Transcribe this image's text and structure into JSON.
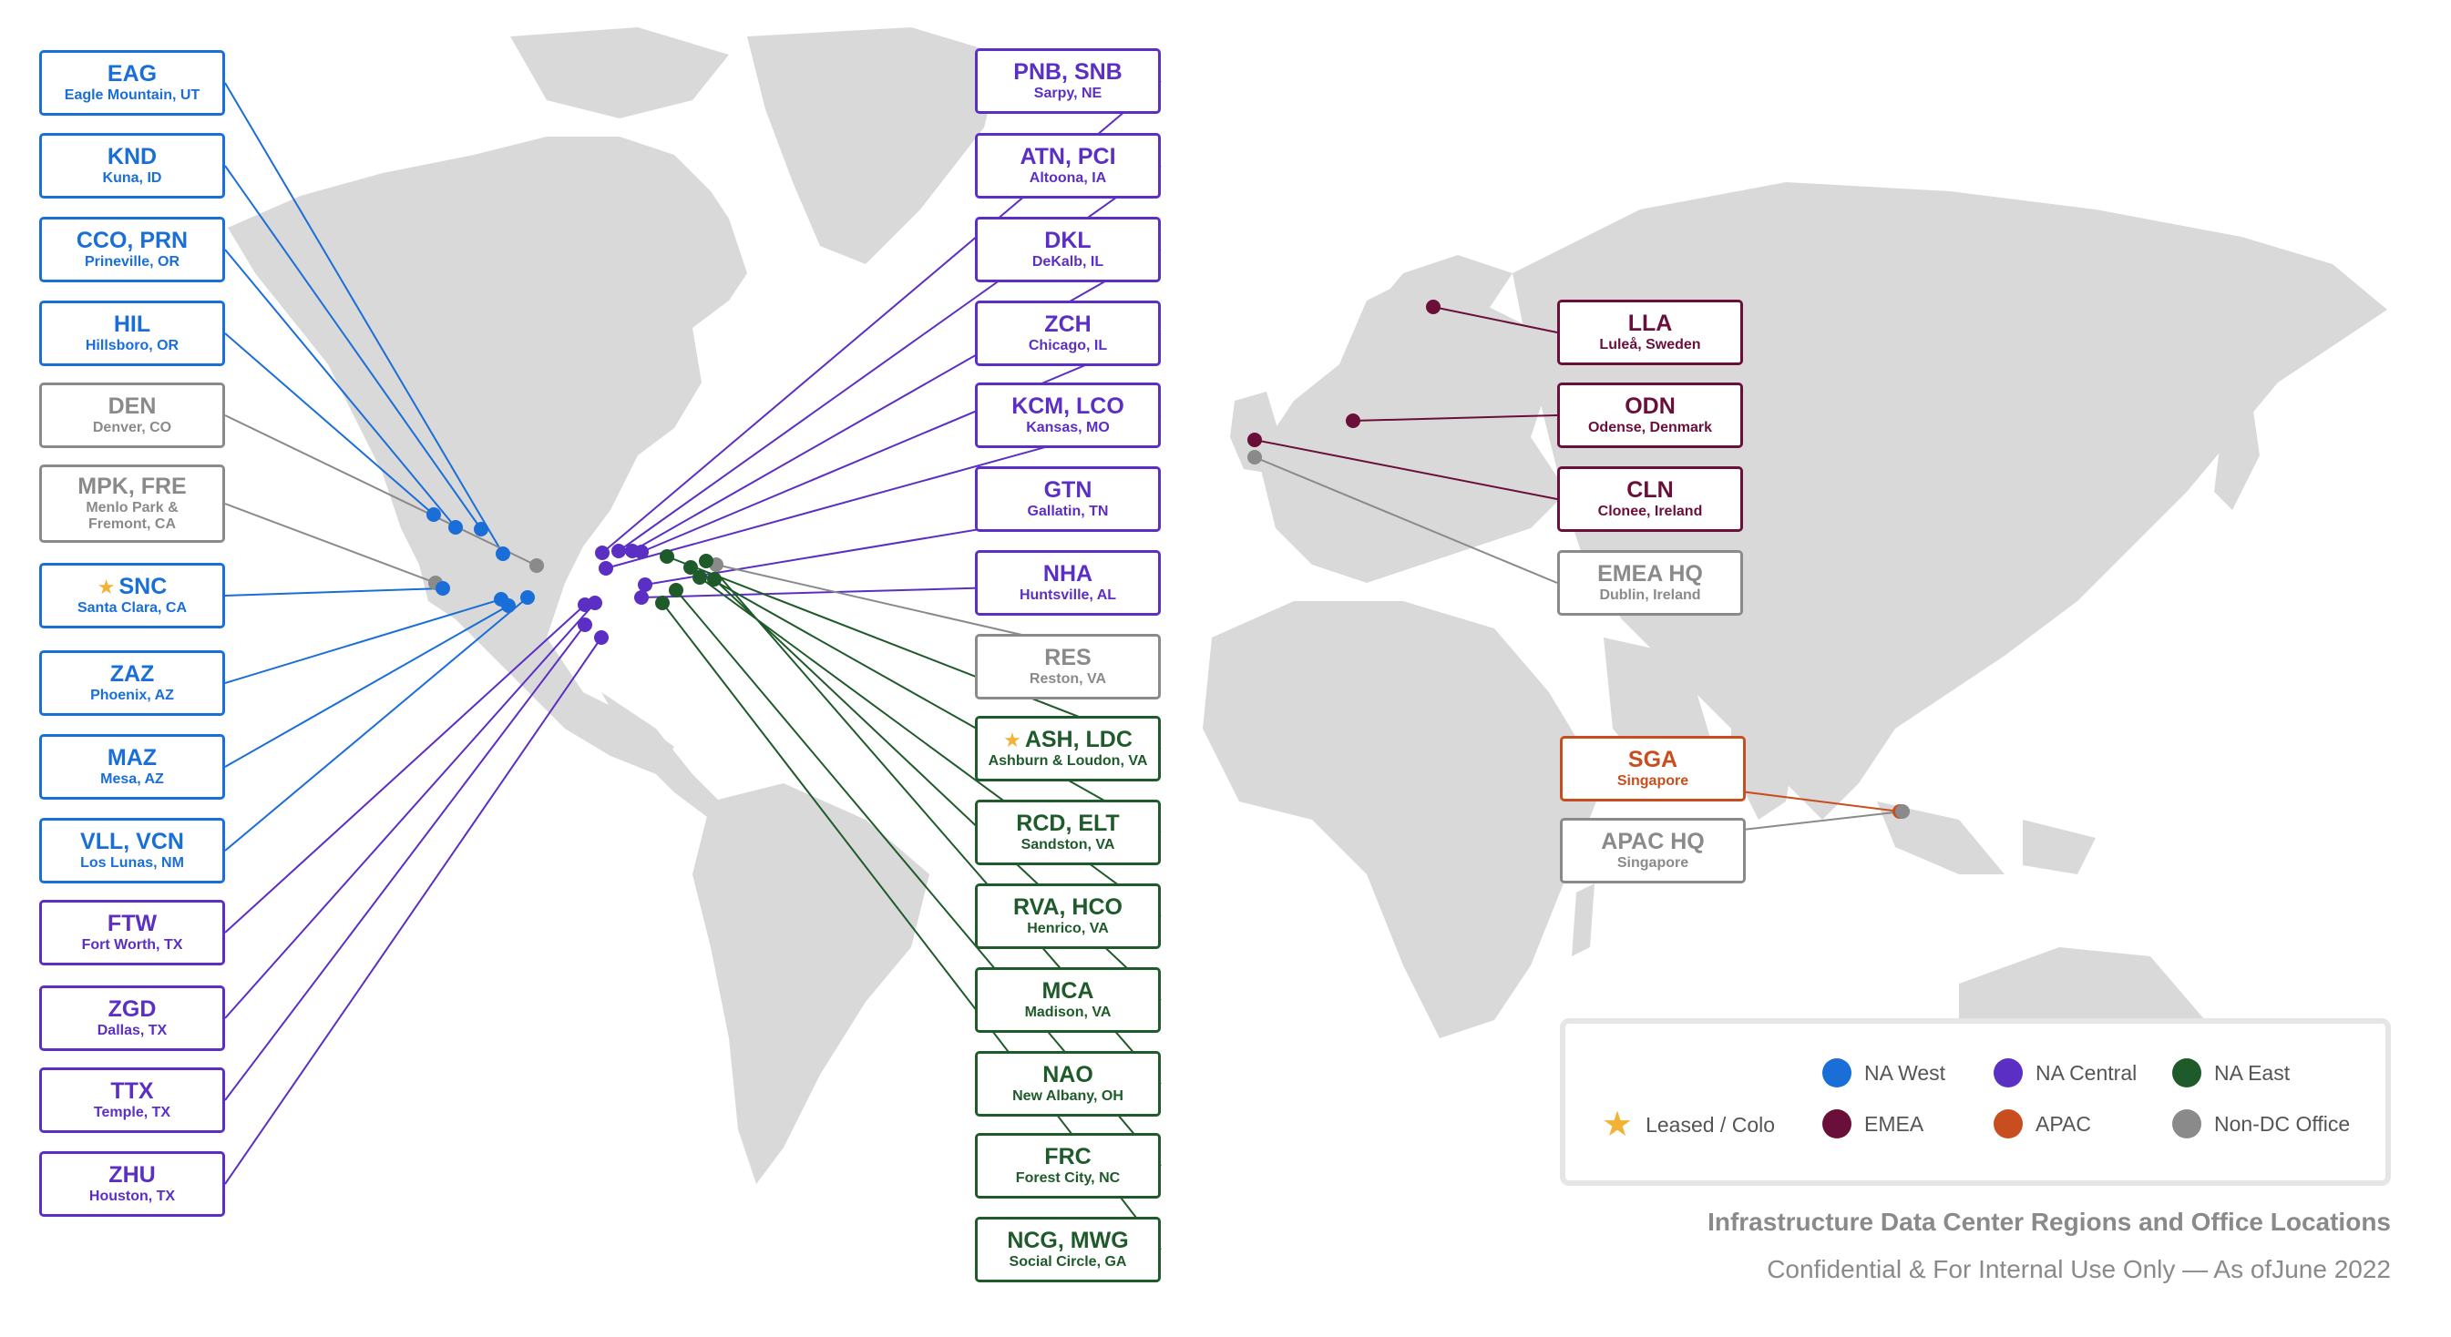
{
  "colors": {
    "na_west": "#1a6ed8",
    "na_central": "#5b2fc4",
    "na_east": "#1f5a2a",
    "emea": "#6a0f3a",
    "apac": "#c94e1f",
    "non_dc": "#8a8a8a",
    "leased": "#f2b233",
    "land": "#d9d9d9"
  },
  "sites": [
    {
      "code": "EAG",
      "location": "Eagle Mountain, UT",
      "region": "na_west"
    },
    {
      "code": "KND",
      "location": "Kuna, ID",
      "region": "na_west"
    },
    {
      "code": "CCO, PRN",
      "location": "Prineville, OR",
      "region": "na_west"
    },
    {
      "code": "HIL",
      "location": "Hillsboro, OR",
      "region": "na_west"
    },
    {
      "code": "DEN",
      "location": "Denver, CO",
      "region": "non_dc"
    },
    {
      "code": "MPK, FRE",
      "location": "Menlo Park & Fremont, CA",
      "region": "non_dc"
    },
    {
      "code": "SNC",
      "location": "Santa Clara, CA",
      "region": "na_west",
      "leased": true
    },
    {
      "code": "ZAZ",
      "location": "Phoenix, AZ",
      "region": "na_west"
    },
    {
      "code": "MAZ",
      "location": "Mesa, AZ",
      "region": "na_west"
    },
    {
      "code": "VLL, VCN",
      "location": "Los Lunas, NM",
      "region": "na_west"
    },
    {
      "code": "FTW",
      "location": "Fort Worth, TX",
      "region": "na_central"
    },
    {
      "code": "ZGD",
      "location": "Dallas, TX",
      "region": "na_central"
    },
    {
      "code": "TTX",
      "location": "Temple, TX",
      "region": "na_central"
    },
    {
      "code": "ZHU",
      "location": "Houston, TX",
      "region": "na_central"
    },
    {
      "code": "PNB, SNB",
      "location": "Sarpy, NE",
      "region": "na_central"
    },
    {
      "code": "ATN, PCI",
      "location": "Altoona, IA",
      "region": "na_central"
    },
    {
      "code": "DKL",
      "location": "DeKalb, IL",
      "region": "na_central"
    },
    {
      "code": "ZCH",
      "location": "Chicago, IL",
      "region": "na_central"
    },
    {
      "code": "KCM, LCO",
      "location": "Kansas, MO",
      "region": "na_central"
    },
    {
      "code": "GTN",
      "location": "Gallatin, TN",
      "region": "na_central"
    },
    {
      "code": "NHA",
      "location": "Huntsville, AL",
      "region": "na_central"
    },
    {
      "code": "RES",
      "location": "Reston, VA",
      "region": "non_dc"
    },
    {
      "code": "ASH, LDC",
      "location": "Ashburn & Loudon, VA",
      "region": "na_east",
      "leased": true
    },
    {
      "code": "RCD, ELT",
      "location": "Sandston, VA",
      "region": "na_east"
    },
    {
      "code": "RVA, HCO",
      "location": "Henrico, VA",
      "region": "na_east"
    },
    {
      "code": "MCA",
      "location": "Madison, VA",
      "region": "na_east"
    },
    {
      "code": "NAO",
      "location": "New Albany, OH",
      "region": "na_east"
    },
    {
      "code": "FRC",
      "location": "Forest City, NC",
      "region": "na_east"
    },
    {
      "code": "NCG, MWG",
      "location": "Social Circle, GA",
      "region": "na_east"
    },
    {
      "code": "LLA",
      "location": "Luleå, Sweden",
      "region": "emea"
    },
    {
      "code": "ODN",
      "location": "Odense, Denmark",
      "region": "emea"
    },
    {
      "code": "CLN",
      "location": "Clonee, Ireland",
      "region": "emea"
    },
    {
      "code": "EMEA HQ",
      "location": "Dublin, Ireland",
      "region": "non_dc"
    },
    {
      "code": "SGA",
      "location": "Singapore",
      "region": "apac"
    },
    {
      "code": "APAC HQ",
      "location": "Singapore",
      "region": "non_dc"
    }
  ],
  "legend": {
    "na_west": "NA West",
    "na_central": "NA Central",
    "na_east": "NA East",
    "leased": "Leased / Colo",
    "emea": "EMEA",
    "apac": "APAC",
    "non_dc": "Non-DC Office"
  },
  "footer": {
    "title": "Infrastructure Data Center Regions and Office Locations",
    "subtitle": "Confidential & For Internal Use Only — As ofJune 2022"
  }
}
